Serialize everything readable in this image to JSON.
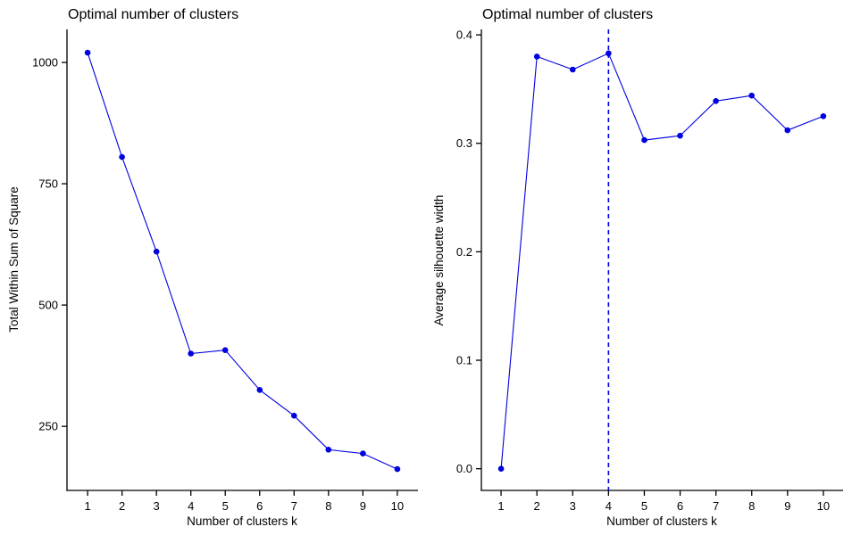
{
  "figure": {
    "background": "#ffffff",
    "accent_color": "#0000e0",
    "axis_color": "#000000",
    "text_color": "#000000"
  },
  "chart_data": [
    {
      "type": "line",
      "name": "elbow-method",
      "title": "Optimal number of clusters",
      "xlabel": "Number of clusters k",
      "ylabel": "Total Within Sum of Square",
      "x": [
        1,
        2,
        3,
        4,
        5,
        6,
        7,
        8,
        9,
        10
      ],
      "values": [
        1020,
        805,
        610,
        400,
        407,
        325,
        272,
        202,
        194,
        162
      ],
      "x_tick_labels": [
        "1",
        "2",
        "3",
        "4",
        "5",
        "6",
        "7",
        "8",
        "9",
        "10"
      ],
      "y_ticks": [
        250,
        500,
        750,
        1000
      ],
      "y_tick_labels": [
        "250",
        "500",
        "750",
        "1000"
      ],
      "xlim": [
        0.4,
        10.6
      ],
      "ylim": [
        118,
        1068
      ],
      "grid": false,
      "legend": "none",
      "line_color": "#0000e0",
      "marker": "filled-circle"
    },
    {
      "type": "line",
      "name": "silhouette-method",
      "title": "Optimal number of clusters",
      "xlabel": "Number of clusters k",
      "ylabel": "Average silhouette width",
      "x": [
        1,
        2,
        3,
        4,
        5,
        6,
        7,
        8,
        9,
        10
      ],
      "values": [
        0.0,
        0.38,
        0.368,
        0.383,
        0.303,
        0.307,
        0.339,
        0.344,
        0.312,
        0.325
      ],
      "x_tick_labels": [
        "1",
        "2",
        "3",
        "4",
        "5",
        "6",
        "7",
        "8",
        "9",
        "10"
      ],
      "y_ticks": [
        0,
        0.1,
        0.2,
        0.3,
        0.4
      ],
      "y_tick_labels": [
        "0.0",
        "0.1",
        "0.2",
        "0.3",
        "0.4"
      ],
      "xlim": [
        0.45,
        10.55
      ],
      "ylim": [
        -0.02,
        0.405
      ],
      "grid": false,
      "legend": "none",
      "line_color": "#0000e0",
      "marker": "filled-circle",
      "vline_x": 4,
      "vline_style": "dashed",
      "vline_color": "#0000e0"
    }
  ]
}
